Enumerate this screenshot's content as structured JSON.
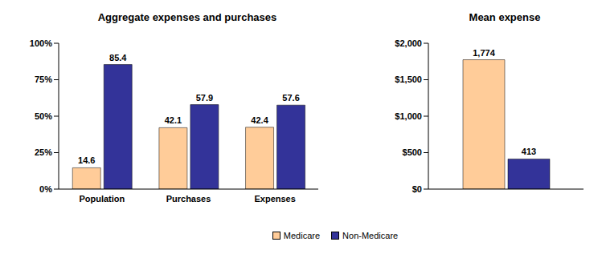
{
  "chart_data": [
    {
      "type": "bar",
      "title": "Aggregate expenses and purchases",
      "categories": [
        "Population",
        "Purchases",
        "Expenses"
      ],
      "series": [
        {
          "name": "Medicare",
          "color": "#FFCC99",
          "values": [
            14.6,
            42.1,
            42.4
          ]
        },
        {
          "name": "Non-Medicare",
          "color": "#333399",
          "values": [
            85.4,
            57.9,
            57.6
          ]
        }
      ],
      "ylim": [
        0,
        100
      ],
      "yticks": [
        {
          "value": 0,
          "label": "0%"
        },
        {
          "value": 25,
          "label": "25%"
        },
        {
          "value": 50,
          "label": "50%"
        },
        {
          "value": 75,
          "label": "75%"
        },
        {
          "value": 100,
          "label": "100%"
        }
      ],
      "data_labels": true,
      "legend": "bottom"
    },
    {
      "type": "bar",
      "title": "Mean expense",
      "categories": [
        null
      ],
      "series": [
        {
          "name": "Medicare",
          "color": "#FFCC99",
          "values": [
            1774
          ],
          "value_labels": [
            "1,774"
          ]
        },
        {
          "name": "Non-Medicare",
          "color": "#333399",
          "values": [
            413
          ],
          "value_labels": [
            "413"
          ]
        }
      ],
      "ylim": [
        0,
        2000
      ],
      "yticks": [
        {
          "value": 0,
          "label": "$0"
        },
        {
          "value": 500,
          "label": "$500"
        },
        {
          "value": 1000,
          "label": "$1,000"
        },
        {
          "value": 1500,
          "label": "$1,500"
        },
        {
          "value": 2000,
          "label": "$2,000"
        }
      ],
      "data_labels": true
    }
  ]
}
